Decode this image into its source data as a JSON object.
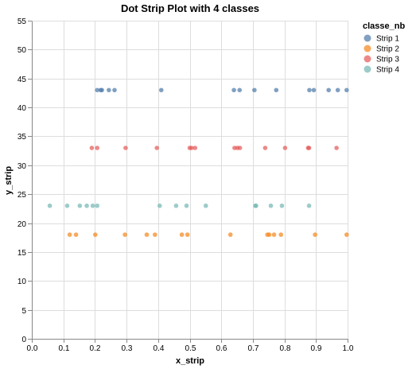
{
  "chart_data": {
    "type": "scatter",
    "title": "Dot Strip Plot with 4 classes",
    "xlabel": "x_strip",
    "ylabel": "y_strip",
    "xlim": [
      0,
      1
    ],
    "ylim": [
      0,
      55
    ],
    "xticks": [
      "0.0",
      "0.1",
      "0.2",
      "0.3",
      "0.4",
      "0.5",
      "0.6",
      "0.7",
      "0.8",
      "0.9",
      "1.0"
    ],
    "yticks": [
      "0",
      "5",
      "10",
      "15",
      "20",
      "25",
      "30",
      "35",
      "40",
      "45",
      "50",
      "55"
    ],
    "grid": true,
    "legend": {
      "title": "classe_nb",
      "placement": "right"
    },
    "series": [
      {
        "name": "Strip 1",
        "color": "#4c78a8",
        "y": 43,
        "x": [
          0.207,
          0.218,
          0.222,
          0.244,
          0.262,
          0.41,
          0.64,
          0.658,
          0.705,
          0.774,
          0.879,
          0.893,
          0.94,
          0.969,
          0.997
        ]
      },
      {
        "name": "Strip 2",
        "color": "#f58518",
        "y": 18,
        "x": [
          0.12,
          0.14,
          0.201,
          0.295,
          0.364,
          0.39,
          0.475,
          0.493,
          0.629,
          0.746,
          0.752,
          0.767,
          0.789,
          0.897,
          0.997
        ]
      },
      {
        "name": "Strip 3",
        "color": "#e45756",
        "y": 33,
        "x": [
          0.19,
          0.207,
          0.297,
          0.396,
          0.5,
          0.506,
          0.517,
          0.642,
          0.651,
          0.659,
          0.739,
          0.802,
          0.875,
          0.878,
          0.965
        ]
      },
      {
        "name": "Strip 4",
        "color": "#72b7b2",
        "y": 23,
        "x": [
          0.057,
          0.112,
          0.152,
          0.174,
          0.193,
          0.207,
          0.405,
          0.457,
          0.49,
          0.551,
          0.708,
          0.71,
          0.757,
          0.792,
          0.878
        ]
      }
    ]
  }
}
